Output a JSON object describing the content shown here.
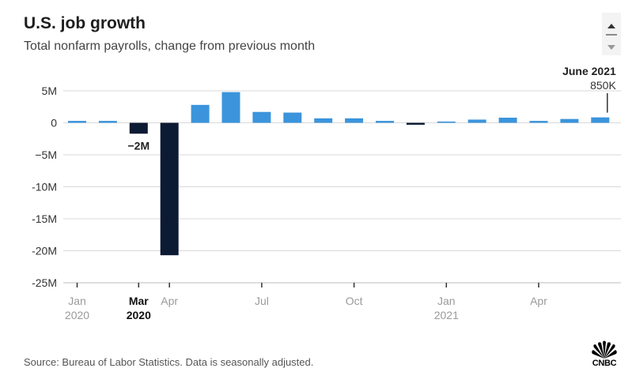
{
  "title": "U.S. job growth",
  "subtitle": "Total nonfarm payrolls, change from previous month",
  "source": "Source: Bureau of Labor Statistics. Data is seasonally adjusted.",
  "logo_text": "CNBC",
  "icons": {
    "scroll_up": "triangle-up-icon",
    "scroll_down": "triangle-down-icon",
    "logo": "peacock-icon"
  },
  "colors": {
    "positive": "#3b94dc",
    "negative": "#0c1a33",
    "grid": "#d9d9d9",
    "tick_label": "#9a9a9a"
  },
  "chart_data": {
    "type": "bar",
    "ylim": [
      -25,
      5
    ],
    "y_unit": "millions of jobs",
    "yticks": [
      5,
      0,
      -5,
      -10,
      -15,
      -20,
      -25
    ],
    "ytick_labels": [
      "5M",
      "0",
      "−5M",
      "-10M",
      "-15M",
      "-20M",
      "-25M"
    ],
    "categories": [
      "Jan 2020",
      "Feb 2020",
      "Mar 2020",
      "Apr 2020",
      "May 2020",
      "Jun 2020",
      "Jul 2020",
      "Aug 2020",
      "Sep 2020",
      "Oct 2020",
      "Nov 2020",
      "Dec 2020",
      "Jan 2021",
      "Feb 2021",
      "Mar 2021",
      "Apr 2021",
      "May 2021",
      "Jun 2021"
    ],
    "values": [
      0.3,
      0.3,
      -1.7,
      -20.7,
      2.8,
      4.8,
      1.7,
      1.6,
      0.7,
      0.7,
      0.3,
      -0.3,
      0.2,
      0.5,
      0.8,
      0.3,
      0.6,
      0.85
    ],
    "xtick_labels": [
      {
        "index": 0,
        "lines": [
          "Jan",
          "2020"
        ],
        "bold": false
      },
      {
        "index": 2,
        "lines": [
          "Mar",
          "2020"
        ],
        "bold": true
      },
      {
        "index": 3,
        "lines": [
          "Apr"
        ],
        "bold": false
      },
      {
        "index": 6,
        "lines": [
          "Jul"
        ],
        "bold": false
      },
      {
        "index": 9,
        "lines": [
          "Oct"
        ],
        "bold": false
      },
      {
        "index": 12,
        "lines": [
          "Jan",
          "2021"
        ],
        "bold": false
      },
      {
        "index": 15,
        "lines": [
          "Apr"
        ],
        "bold": false
      }
    ],
    "annotations": [
      {
        "index": 2,
        "label": "−2M",
        "bold": true
      },
      {
        "index": 17,
        "label": "June 2021",
        "value_label": "850K",
        "bold": true
      }
    ],
    "grid": true
  }
}
